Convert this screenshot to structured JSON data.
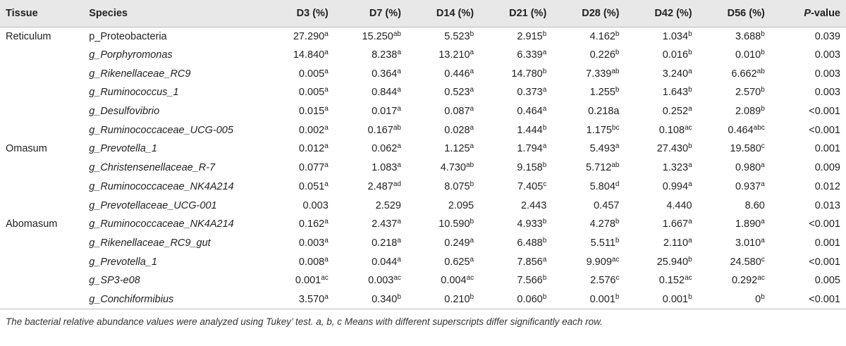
{
  "table": {
    "headers": {
      "tissue": "Tissue",
      "species": "Species",
      "d3": "D3 (%)",
      "d7": "D7 (%)",
      "d14": "D14 (%)",
      "d21": "D21 (%)",
      "d28": "D28 (%)",
      "d42": "D42 (%)",
      "d56": "D56 (%)",
      "p_label_italic": "P",
      "p_label_rest": "-value"
    },
    "rows": [
      {
        "tissue": "Reticulum",
        "species": "p_Proteobacteria",
        "italic": false,
        "cells": [
          [
            "27.290",
            "a"
          ],
          [
            "15.250",
            "ab"
          ],
          [
            "5.523",
            "b"
          ],
          [
            "2.915",
            "b"
          ],
          [
            "4.162",
            "b"
          ],
          [
            "1.034",
            "b"
          ],
          [
            "3.688",
            "b"
          ]
        ],
        "p": "0.039"
      },
      {
        "tissue": "",
        "species": "g_Porphyromonas",
        "italic": true,
        "cells": [
          [
            "14.840",
            "a"
          ],
          [
            "8.238",
            "a"
          ],
          [
            "13.210",
            "a"
          ],
          [
            "6.339",
            "a"
          ],
          [
            "0.226",
            "b"
          ],
          [
            "0.016",
            "b"
          ],
          [
            "0.010",
            "b"
          ]
        ],
        "p": "0.003"
      },
      {
        "tissue": "",
        "species": "g_Rikenellaceae_RC9",
        "italic": true,
        "cells": [
          [
            "0.005",
            "a"
          ],
          [
            "0.364",
            "a"
          ],
          [
            "0.446",
            "a"
          ],
          [
            "14.780",
            "b"
          ],
          [
            "7.339",
            "ab"
          ],
          [
            "3.240",
            "a"
          ],
          [
            "6.662",
            "ab"
          ]
        ],
        "p": "0.003"
      },
      {
        "tissue": "",
        "species": "g_Ruminococcus_1",
        "italic": true,
        "cells": [
          [
            "0.005",
            "a"
          ],
          [
            "0.844",
            "a"
          ],
          [
            "0.523",
            "a"
          ],
          [
            "0.373",
            "a"
          ],
          [
            "1.255",
            "b"
          ],
          [
            "1.643",
            "b"
          ],
          [
            "2.570",
            "b"
          ]
        ],
        "p": "0.003"
      },
      {
        "tissue": "",
        "species": "g_Desulfovibrio",
        "italic": true,
        "cells": [
          [
            "0.015",
            "a"
          ],
          [
            "0.017",
            "a"
          ],
          [
            "0.087",
            "a"
          ],
          [
            "0.464",
            "a"
          ],
          [
            "0.218a",
            ""
          ],
          [
            "0.252",
            "a"
          ],
          [
            "2.089",
            "b"
          ]
        ],
        "p": "<0.001"
      },
      {
        "tissue": "",
        "species": "g_Ruminococcaceae_UCG-005",
        "italic": true,
        "cells": [
          [
            "0.002",
            "a"
          ],
          [
            "0.167",
            "ab"
          ],
          [
            "0.028",
            "a"
          ],
          [
            "1.444",
            "b"
          ],
          [
            "1.175",
            "bc"
          ],
          [
            "0.108",
            "ac"
          ],
          [
            "0.464",
            "abc"
          ]
        ],
        "p": "<0.001"
      },
      {
        "tissue": "Omasum",
        "species": "g_Prevotella_1",
        "italic": true,
        "cells": [
          [
            "0.012",
            "a"
          ],
          [
            "0.062",
            "a"
          ],
          [
            "1.125",
            "a"
          ],
          [
            "1.794",
            "a"
          ],
          [
            "5.493",
            "a"
          ],
          [
            "27.430",
            "b"
          ],
          [
            "19.580",
            "c"
          ]
        ],
        "p": "0.001"
      },
      {
        "tissue": "",
        "species": "g_Christensenellaceae_R-7",
        "italic": true,
        "cells": [
          [
            "0.077",
            "a"
          ],
          [
            "1.083",
            "a"
          ],
          [
            "4.730",
            "ab"
          ],
          [
            "9.158",
            "b"
          ],
          [
            "5.712",
            "ab"
          ],
          [
            "1.323",
            "a"
          ],
          [
            "0.980",
            "a"
          ]
        ],
        "p": "0.009"
      },
      {
        "tissue": "",
        "species": "g_Ruminococcaceae_NK4A214",
        "italic": true,
        "cells": [
          [
            "0.051",
            "a"
          ],
          [
            "2.487",
            "ad"
          ],
          [
            "8.075",
            "b"
          ],
          [
            "7.405",
            "c"
          ],
          [
            "5.804",
            "d"
          ],
          [
            "0.994",
            "a"
          ],
          [
            "0.937",
            "a"
          ]
        ],
        "p": "0.012"
      },
      {
        "tissue": "",
        "species": "g_Prevotellaceae_UCG-001",
        "italic": true,
        "cells": [
          [
            "0.003",
            ""
          ],
          [
            "2.529",
            ""
          ],
          [
            "2.095",
            ""
          ],
          [
            "2.443",
            ""
          ],
          [
            "0.457",
            ""
          ],
          [
            "4.440",
            ""
          ],
          [
            "8.60",
            ""
          ]
        ],
        "p": "0.013"
      },
      {
        "tissue": "Abomasum",
        "species": "g_Ruminococcaceae_NK4A214",
        "italic": true,
        "cells": [
          [
            "0.162",
            "a"
          ],
          [
            "2.437",
            "a"
          ],
          [
            "10.590",
            "b"
          ],
          [
            "4.933",
            "b"
          ],
          [
            "4.278",
            "b"
          ],
          [
            "1.667",
            "a"
          ],
          [
            "1.890",
            "a"
          ]
        ],
        "p": "<0.001"
      },
      {
        "tissue": "",
        "species": "g_Rikenellaceae_RC9_gut",
        "italic": true,
        "cells": [
          [
            "0.003",
            "a"
          ],
          [
            "0.218",
            "a"
          ],
          [
            "0.249",
            "a"
          ],
          [
            "6.488",
            "b"
          ],
          [
            "5.511",
            "b"
          ],
          [
            "2.110",
            "a"
          ],
          [
            "3.010",
            "a"
          ]
        ],
        "p": "0.001"
      },
      {
        "tissue": "",
        "species": "g_Prevotella_1",
        "italic": true,
        "cells": [
          [
            "0.008",
            "a"
          ],
          [
            "0.044",
            "a"
          ],
          [
            "0.625",
            "a"
          ],
          [
            "7.856",
            "a"
          ],
          [
            "9.909",
            "ac"
          ],
          [
            "25.940",
            "b"
          ],
          [
            "24.580",
            "c"
          ]
        ],
        "p": "<0.001"
      },
      {
        "tissue": "",
        "species": "g_SP3-e08",
        "italic": true,
        "cells": [
          [
            "0.001",
            "ac"
          ],
          [
            "0.003",
            "ac"
          ],
          [
            "0.004",
            "ac"
          ],
          [
            "7.566",
            "b"
          ],
          [
            "2.576",
            "c"
          ],
          [
            "0.152",
            "ac"
          ],
          [
            "0.292",
            "ac"
          ]
        ],
        "p": "0.005"
      },
      {
        "tissue": "",
        "species": "g_Conchiformibius",
        "italic": true,
        "cells": [
          [
            "3.570",
            "a"
          ],
          [
            "0.340",
            "b"
          ],
          [
            "0.210",
            "b"
          ],
          [
            "0.060",
            "b"
          ],
          [
            "0.001",
            "b"
          ],
          [
            "0.001",
            "b"
          ],
          [
            "0",
            "b"
          ]
        ],
        "p": "<0.001"
      }
    ]
  },
  "footnote": "The bacterial relative abundance values were analyzed using Tukey’ test. a, b, c Means with different superscripts differ significantly each row."
}
